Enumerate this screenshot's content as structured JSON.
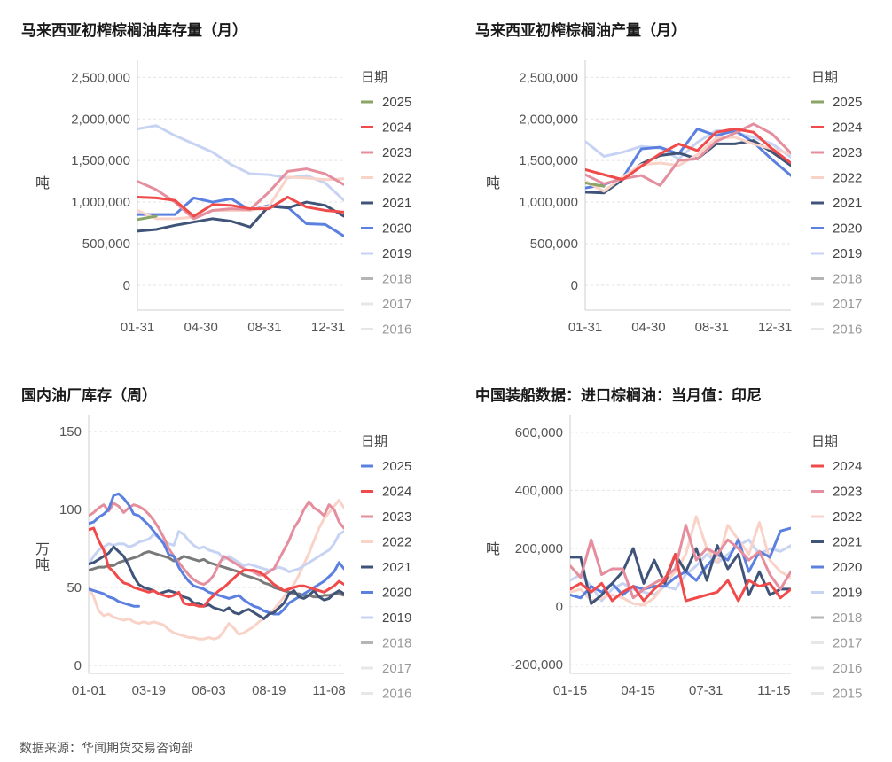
{
  "source": "数据来源：华闻期货交易咨询部",
  "chart_data": [
    {
      "type": "line",
      "title": "马来西亚初榨棕榈油库存量（月）",
      "ylabel": "吨",
      "ylim": [
        -300000,
        2600000
      ],
      "yticks": [
        0,
        500000,
        1000000,
        1500000,
        2000000,
        2500000
      ],
      "ytick_labels": [
        "0",
        "500,000",
        "1,000,000",
        "1,500,000",
        "2,000,000",
        "2,500,000"
      ],
      "x_ticks": [
        "01-31",
        "04-30",
        "08-31",
        "12-31"
      ],
      "n_points": 12,
      "legend_title": "日期",
      "legend": [
        "2025",
        "2024",
        "2023",
        "2022",
        "2021",
        "2020",
        "2019",
        "2018",
        "2017",
        "2016"
      ],
      "series": [
        {
          "name": "2019",
          "color": "#c7d3f2",
          "values": [
            1880000,
            1920000,
            1800000,
            1700000,
            1600000,
            1450000,
            1340000,
            1330000,
            1290000,
            1320000,
            1230000,
            1020000
          ]
        },
        {
          "name": "2020",
          "color": "#5b80e0",
          "values": [
            850000,
            850000,
            850000,
            1050000,
            1000000,
            1040000,
            900000,
            960000,
            940000,
            740000,
            730000,
            590000
          ]
        },
        {
          "name": "2021",
          "color": "#3f5478",
          "values": [
            650000,
            670000,
            720000,
            760000,
            800000,
            770000,
            700000,
            950000,
            930000,
            1000000,
            960000,
            830000
          ]
        },
        {
          "name": "2022",
          "color": "#f9d2c8",
          "values": [
            900000,
            800000,
            800000,
            820000,
            900000,
            900000,
            900000,
            950000,
            1300000,
            1290000,
            1270000,
            1280000
          ]
        },
        {
          "name": "2023",
          "color": "#e48e9e",
          "values": [
            1250000,
            1150000,
            1000000,
            800000,
            900000,
            920000,
            910000,
            1120000,
            1370000,
            1400000,
            1340000,
            1210000
          ]
        },
        {
          "name": "2024",
          "color": "#f04a4a",
          "values": [
            1060000,
            1050000,
            1020000,
            830000,
            970000,
            960000,
            920000,
            920000,
            1060000,
            940000,
            900000,
            880000
          ]
        },
        {
          "name": "2025",
          "color": "#8aa565",
          "values": [
            790000,
            830000
          ]
        }
      ]
    },
    {
      "type": "line",
      "title": "马来西亚初榨棕榈油产量（月）",
      "ylabel": "吨",
      "ylim": [
        -300000,
        2600000
      ],
      "yticks": [
        0,
        500000,
        1000000,
        1500000,
        2000000,
        2500000
      ],
      "ytick_labels": [
        "0",
        "500,000",
        "1,000,000",
        "1,500,000",
        "2,000,000",
        "2,500,000"
      ],
      "x_ticks": [
        "01-31",
        "04-30",
        "08-31",
        "12-31"
      ],
      "n_points": 12,
      "legend_title": "日期",
      "legend": [
        "2025",
        "2024",
        "2023",
        "2022",
        "2021",
        "2020",
        "2019",
        "2018",
        "2017",
        "2016"
      ],
      "series": [
        {
          "name": "2019",
          "color": "#c7d3f2",
          "values": [
            1730000,
            1550000,
            1600000,
            1670000,
            1650000,
            1520000,
            1720000,
            1860000,
            1840000,
            1780000,
            1700000,
            1540000
          ]
        },
        {
          "name": "2020",
          "color": "#5b80e0",
          "values": [
            1170000,
            1210000,
            1290000,
            1640000,
            1660000,
            1580000,
            1880000,
            1800000,
            1860000,
            1720000,
            1510000,
            1320000
          ]
        },
        {
          "name": "2021",
          "color": "#3f5478",
          "values": [
            1120000,
            1110000,
            1270000,
            1460000,
            1560000,
            1590000,
            1520000,
            1700000,
            1700000,
            1740000,
            1600000,
            1440000
          ]
        },
        {
          "name": "2022",
          "color": "#f9d2c8",
          "values": [
            1250000,
            1130000,
            1300000,
            1450000,
            1470000,
            1440000,
            1570000,
            1770000,
            1780000,
            1700000,
            1640000,
            1580000
          ]
        },
        {
          "name": "2023",
          "color": "#e48e9e",
          "values": [
            1330000,
            1220000,
            1280000,
            1320000,
            1200000,
            1500000,
            1520000,
            1730000,
            1830000,
            1940000,
            1820000,
            1590000
          ]
        },
        {
          "name": "2024",
          "color": "#f04a4a",
          "values": [
            1390000,
            1330000,
            1270000,
            1430000,
            1580000,
            1700000,
            1620000,
            1840000,
            1880000,
            1840000,
            1640000,
            1470000
          ]
        },
        {
          "name": "2025",
          "color": "#8aa565",
          "values": [
            1230000,
            1190000
          ]
        }
      ]
    },
    {
      "type": "line",
      "title": "国内油厂库存（周）",
      "ylabel": "万吨",
      "ylim": [
        -5,
        155
      ],
      "yticks": [
        0,
        50,
        100,
        150
      ],
      "ytick_labels": [
        "0",
        "50",
        "100",
        "150"
      ],
      "x_ticks": [
        "01-01",
        "03-19",
        "06-03",
        "08-19",
        "11-08"
      ],
      "n_points": 52,
      "legend_title": "日期",
      "legend": [
        "2025",
        "2024",
        "2023",
        "2022",
        "2021",
        "2020",
        "2019",
        "2018",
        "2017",
        "2016"
      ],
      "series": [
        {
          "name": "2022",
          "color": "#f9d2c8",
          "values": [
            50,
            44,
            35,
            32,
            33,
            31,
            30,
            29,
            30,
            28,
            27,
            28,
            27,
            28,
            27,
            26,
            23,
            21,
            20,
            19,
            18,
            18,
            17,
            17,
            18,
            17,
            18,
            22,
            27,
            24,
            20,
            21,
            23,
            25,
            28,
            30,
            33,
            36,
            40,
            44,
            48,
            52,
            58,
            65,
            72,
            80,
            88,
            94,
            98,
            102,
            106,
            101
          ]
        },
        {
          "name": "2019",
          "color": "#c7d3f2",
          "values": [
            65,
            70,
            74,
            76,
            78,
            77,
            78,
            78,
            76,
            77,
            79,
            80,
            81,
            84,
            82,
            80,
            78,
            77,
            86,
            84,
            80,
            77,
            75,
            76,
            74,
            73,
            72,
            68,
            70,
            68,
            66,
            64,
            65,
            64,
            63,
            62,
            61,
            62,
            63,
            62,
            60,
            61,
            62,
            64,
            66,
            68,
            70,
            72,
            74,
            78,
            84,
            86
          ]
        },
        {
          "name": "2018",
          "color": "#7a7a7a",
          "values": [
            61,
            62,
            63,
            63,
            64,
            64,
            66,
            67,
            68,
            69,
            70,
            72,
            73,
            72,
            71,
            70,
            69,
            67,
            68,
            70,
            69,
            68,
            67,
            68,
            66,
            65,
            64,
            63,
            62,
            61,
            60,
            58,
            57,
            56,
            55,
            53,
            52,
            50,
            49,
            48,
            47,
            46,
            46,
            45,
            45,
            44,
            44,
            45,
            45,
            46,
            46,
            45
          ]
        },
        {
          "name": "2023",
          "color": "#e48e9e",
          "values": [
            96,
            98,
            101,
            103,
            99,
            104,
            102,
            98,
            101,
            103,
            102,
            100,
            97,
            93,
            88,
            82,
            75,
            70,
            66,
            62,
            58,
            55,
            53,
            52,
            54,
            58,
            65,
            70,
            68,
            66,
            64,
            62,
            61,
            60,
            58,
            58,
            60,
            62,
            68,
            74,
            80,
            88,
            93,
            100,
            105,
            101,
            99,
            96,
            103,
            100,
            92,
            88
          ]
        },
        {
          "name": "2020",
          "color": "#5b80e0",
          "values": [
            91,
            92,
            95,
            97,
            100,
            109,
            110,
            107,
            103,
            97,
            96,
            93,
            90,
            86,
            82,
            78,
            71,
            70,
            63,
            58,
            54,
            51,
            50,
            49,
            47,
            46,
            45,
            44,
            43,
            44,
            45,
            42,
            40,
            38,
            37,
            35,
            34,
            33,
            33,
            36,
            40,
            42,
            44,
            46,
            48,
            50,
            52,
            54,
            57,
            60,
            66,
            62
          ]
        },
        {
          "name": "2021",
          "color": "#3f5478",
          "values": [
            65,
            66,
            68,
            70,
            72,
            76,
            73,
            70,
            64,
            57,
            52,
            50,
            49,
            48,
            46,
            47,
            48,
            47,
            46,
            44,
            43,
            40,
            40,
            38,
            39,
            37,
            36,
            35,
            37,
            34,
            33,
            35,
            36,
            34,
            32,
            30,
            33,
            34,
            37,
            40,
            46,
            48,
            44,
            43,
            45,
            48,
            44,
            42,
            43,
            46,
            48,
            46
          ]
        },
        {
          "name": "2024",
          "color": "#f04a4a",
          "values": [
            87,
            88,
            80,
            74,
            63,
            60,
            56,
            53,
            52,
            50,
            49,
            48,
            47,
            48,
            46,
            45,
            44,
            45,
            47,
            40,
            39,
            39,
            38,
            38,
            42,
            45,
            48,
            50,
            53,
            56,
            59,
            61,
            61,
            61,
            60,
            58,
            55,
            52,
            50,
            48,
            49,
            50,
            51,
            51,
            50,
            49,
            48,
            47,
            49,
            51,
            54,
            52
          ]
        },
        {
          "name": "2025",
          "color": "#5b80e0",
          "values": [
            49,
            48,
            47,
            46,
            44,
            43,
            41,
            40,
            39,
            38,
            38
          ]
        }
      ]
    },
    {
      "type": "line",
      "title": "中国装船数据：进口棕榈油：当月值：印尼",
      "ylabel": "吨",
      "ylim": [
        -230000,
        630000
      ],
      "yticks": [
        -200000,
        0,
        200000,
        400000,
        600000
      ],
      "ytick_labels": [
        "-200,000",
        "0",
        "200,000",
        "400,000",
        "600,000"
      ],
      "x_ticks": [
        "01-15",
        "04-15",
        "07-31",
        "11-15"
      ],
      "n_points": 22,
      "legend_title": "日期",
      "legend": [
        "2024",
        "2023",
        "2022",
        "2021",
        "2020",
        "2019",
        "2018",
        "2017",
        "2016",
        "2015"
      ],
      "series": [
        {
          "name": "2019",
          "color": "#c7d3f2",
          "values": [
            90000,
            110000,
            70000,
            20000,
            60000,
            80000,
            60000,
            50000,
            40000,
            70000,
            60000,
            110000,
            140000,
            180000,
            150000,
            180000,
            210000,
            230000,
            180000,
            200000,
            190000,
            210000
          ]
        },
        {
          "name": "2022",
          "color": "#f9d2c8",
          "values": [
            50000,
            60000,
            20000,
            30000,
            40000,
            30000,
            10000,
            5000,
            30000,
            80000,
            120000,
            180000,
            310000,
            200000,
            150000,
            280000,
            230000,
            180000,
            290000,
            160000,
            120000,
            100000
          ]
        },
        {
          "name": "2020",
          "color": "#5b80e0",
          "values": [
            40000,
            30000,
            70000,
            50000,
            80000,
            40000,
            70000,
            60000,
            70000,
            70000,
            100000,
            120000,
            90000,
            140000,
            180000,
            160000,
            230000,
            120000,
            190000,
            170000,
            260000,
            270000
          ]
        },
        {
          "name": "2021",
          "color": "#3f5478",
          "values": [
            170000,
            170000,
            10000,
            40000,
            80000,
            120000,
            200000,
            80000,
            160000,
            80000,
            180000,
            120000,
            200000,
            90000,
            210000,
            130000,
            180000,
            40000,
            120000,
            40000,
            60000,
            60000
          ]
        },
        {
          "name": "2023",
          "color": "#e48e9e",
          "values": [
            140000,
            100000,
            230000,
            110000,
            130000,
            130000,
            30000,
            60000,
            80000,
            100000,
            130000,
            280000,
            160000,
            200000,
            180000,
            230000,
            200000,
            160000,
            190000,
            110000,
            60000,
            120000
          ]
        },
        {
          "name": "2024",
          "color": "#f04a4a",
          "values": [
            60000,
            80000,
            50000,
            80000,
            20000,
            50000,
            70000,
            20000,
            60000,
            90000,
            180000,
            20000,
            30000,
            40000,
            50000,
            90000,
            20000,
            90000,
            70000,
            80000,
            30000,
            60000
          ]
        }
      ]
    }
  ]
}
